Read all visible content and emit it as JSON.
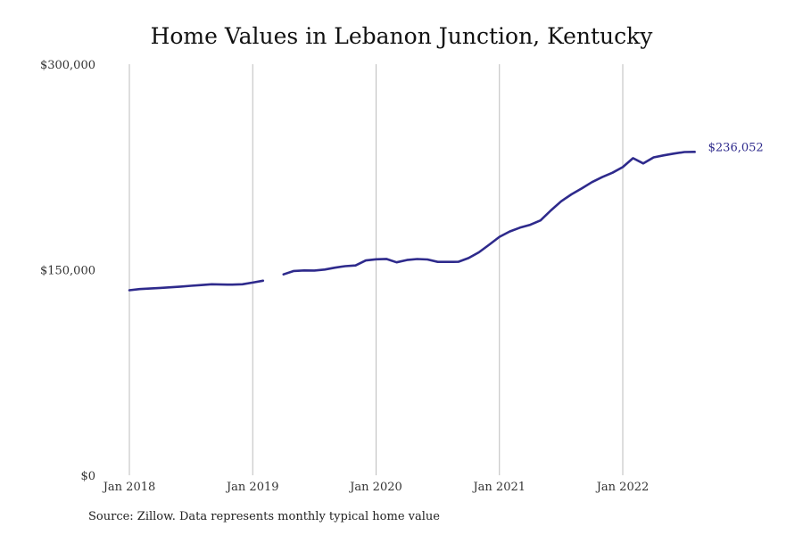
{
  "chart_data": {
    "type": "line",
    "title": "Home Values in Lebanon Junction, Kentucky",
    "source_note": "Source: Zillow. Data represents monthly typical home value",
    "y_axis": {
      "min": 0,
      "max": 300000,
      "ticks": [
        0,
        150000,
        300000
      ],
      "tick_labels": [
        "$0",
        "$150,000",
        "$300,000"
      ]
    },
    "x_axis": {
      "tick_labels": [
        "Jan 2018",
        "Jan 2019",
        "Jan 2020",
        "Jan 2021",
        "Jan 2022"
      ],
      "tick_dates": [
        "2018-01",
        "2019-01",
        "2020-01",
        "2021-01",
        "2022-01"
      ],
      "range": [
        "2018-01",
        "2022-08"
      ]
    },
    "grid": {
      "vertical": true,
      "horizontal": false
    },
    "line_color": "#2e2a8c",
    "end_label": "$236,052",
    "series": [
      {
        "points": [
          [
            "2018-01",
            135000
          ],
          [
            "2018-02",
            135900
          ],
          [
            "2018-03",
            136300
          ],
          [
            "2018-04",
            136700
          ],
          [
            "2018-05",
            137200
          ],
          [
            "2018-06",
            137700
          ],
          [
            "2018-07",
            138300
          ],
          [
            "2018-08",
            138800
          ],
          [
            "2018-09",
            139400
          ],
          [
            "2018-10",
            139200
          ],
          [
            "2018-11",
            139100
          ],
          [
            "2018-12",
            139400
          ],
          [
            "2019-01",
            140600
          ],
          [
            "2019-02",
            142000
          ],
          [
            "2019-03",
            null
          ],
          [
            "2019-04",
            146600
          ],
          [
            "2019-05",
            149100
          ],
          [
            "2019-06",
            149500
          ],
          [
            "2019-07",
            149400
          ],
          [
            "2019-08",
            150100
          ],
          [
            "2019-09",
            151500
          ],
          [
            "2019-10",
            152600
          ],
          [
            "2019-11",
            153100
          ],
          [
            "2019-12",
            156800
          ],
          [
            "2020-01",
            157600
          ],
          [
            "2020-02",
            157900
          ],
          [
            "2020-03",
            155400
          ],
          [
            "2020-04",
            157100
          ],
          [
            "2020-05",
            157800
          ],
          [
            "2020-06",
            157500
          ],
          [
            "2020-07",
            155700
          ],
          [
            "2020-08",
            155700
          ],
          [
            "2020-09",
            155800
          ],
          [
            "2020-10",
            158500
          ],
          [
            "2020-11",
            162700
          ],
          [
            "2020-12",
            168200
          ],
          [
            "2021-01",
            174000
          ],
          [
            "2021-02",
            177900
          ],
          [
            "2021-03",
            180700
          ],
          [
            "2021-04",
            182800
          ],
          [
            "2021-05",
            186000
          ],
          [
            "2021-06",
            193300
          ],
          [
            "2021-07",
            199900
          ],
          [
            "2021-08",
            205000
          ],
          [
            "2021-09",
            209300
          ],
          [
            "2021-10",
            213900
          ],
          [
            "2021-11",
            217600
          ],
          [
            "2021-12",
            220800
          ],
          [
            "2022-01",
            224900
          ],
          [
            "2022-02",
            231400
          ],
          [
            "2022-03",
            227600
          ],
          [
            "2022-04",
            232000
          ],
          [
            "2022-05",
            233500
          ],
          [
            "2022-06",
            234800
          ],
          [
            "2022-07",
            235900
          ],
          [
            "2022-08",
            236052
          ]
        ]
      }
    ]
  }
}
